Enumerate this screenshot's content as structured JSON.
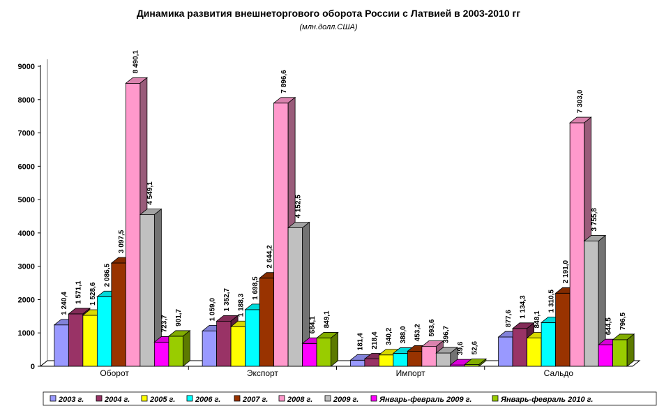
{
  "chart_data": {
    "type": "bar",
    "title": "Динамика развития внешнеторгового оборота России с Латвией в 2003-2010 гг",
    "subtitle": "(млн.долл.США)",
    "categories": [
      "Оборот",
      "Экспорт",
      "Импорт",
      "Сальдо"
    ],
    "ylim": [
      0,
      9000
    ],
    "yticks": [
      "0",
      "1000",
      "2000",
      "3000",
      "4000",
      "5000",
      "6000",
      "7000",
      "8000",
      "9000"
    ],
    "legend_position": "bottom",
    "series": [
      {
        "name": "2003 г.",
        "color": "#9999FF",
        "values": [
          1240.4,
          1059.0,
          181.4,
          877.6
        ],
        "labels": [
          "1 240,4",
          "1 059,0",
          "181,4",
          "877,6"
        ]
      },
      {
        "name": "2004 г.",
        "color": "#993366",
        "values": [
          1571.1,
          1352.7,
          218.4,
          1134.3
        ],
        "labels": [
          "1 571,1",
          "1 352,7",
          "218,4",
          "1 134,3"
        ]
      },
      {
        "name": "2005 г.",
        "color": "#FFFF00",
        "values": [
          1528.6,
          1188.3,
          340.2,
          848.1
        ],
        "labels": [
          "1 528,6",
          "1 188,3",
          "340,2",
          "848,1"
        ]
      },
      {
        "name": "2006 г.",
        "color": "#00FFFF",
        "values": [
          2086.5,
          1698.5,
          388.0,
          1310.5
        ],
        "labels": [
          "2 086,5",
          "1 698,5",
          "388,0",
          "1 310,5"
        ]
      },
      {
        "name": "2007 г.",
        "color": "#993300",
        "values": [
          3097.5,
          2644.2,
          453.2,
          2191.0
        ],
        "labels": [
          "3 097,5",
          "2 644,2",
          "453,2",
          "2 191,0"
        ]
      },
      {
        "name": "2008 г.",
        "color": "#FF99CC",
        "values": [
          8490.1,
          7896.6,
          593.6,
          7303.0
        ],
        "labels": [
          "8 490,1",
          "7 896,6",
          "593,6",
          "7 303,0"
        ]
      },
      {
        "name": "2009 г.",
        "color": "#C0C0C0",
        "values": [
          4549.1,
          4152.5,
          396.7,
          3755.8
        ],
        "labels": [
          "4 549,1",
          "4 152,5",
          "396,7",
          "3 755,8"
        ]
      },
      {
        "name": "Январь-февраль 2009 г.",
        "color": "#FF00FF",
        "values": [
          723.7,
          684.1,
          39.6,
          644.5
        ],
        "labels": [
          "723,7",
          "684,1",
          "39,6",
          "644,5"
        ]
      },
      {
        "name": "Январь-февраль 2010 г.",
        "color": "#99CC00",
        "values": [
          901.7,
          849.1,
          52.6,
          796.5
        ],
        "labels": [
          "901,7",
          "849,1",
          "52,6",
          "796,5"
        ]
      }
    ]
  }
}
